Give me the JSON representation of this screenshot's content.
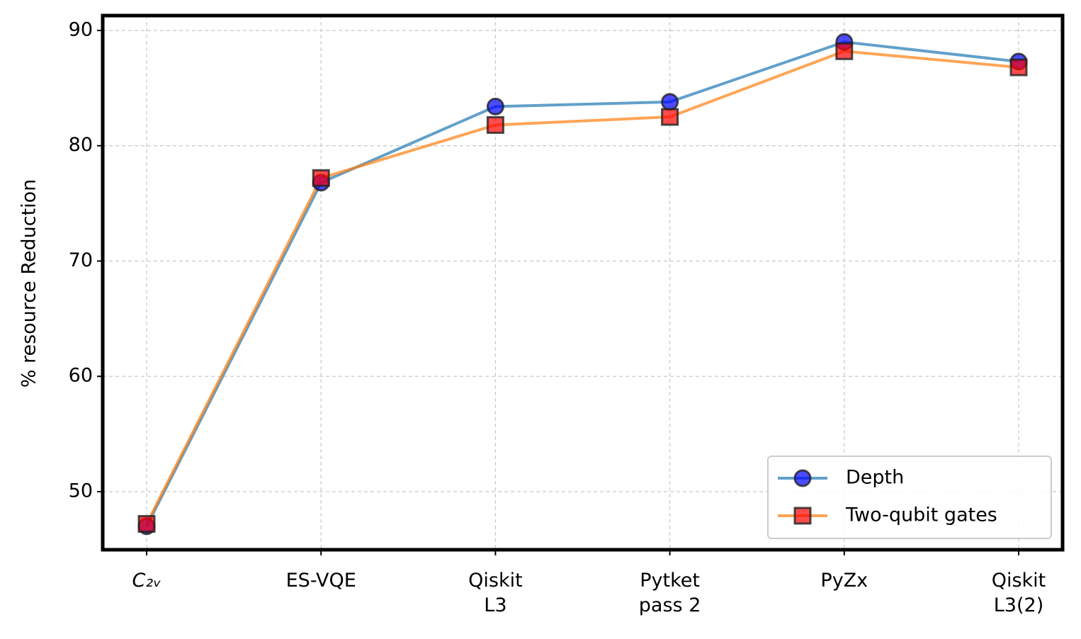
{
  "chart_data": {
    "type": "line",
    "ylabel": "% resource Reduction",
    "categories": [
      "C₂ᵥ",
      "ES-VQE",
      "Qiskit\nL3",
      "Pytket\npass 2",
      "PyZx",
      "Qiskit\nL3(2)"
    ],
    "series": [
      {
        "name": "Depth",
        "color": "#1f77b4",
        "marker": "circle",
        "marker_color": "#0000ff",
        "values": [
          47.0,
          76.8,
          83.4,
          83.8,
          89.0,
          87.3
        ]
      },
      {
        "name": "Two-qubit gates",
        "color": "#ff7f0e",
        "marker": "square",
        "marker_color": "#ff0000",
        "values": [
          47.2,
          77.2,
          81.8,
          82.5,
          88.2,
          86.8
        ]
      }
    ],
    "ylim": [
      44.96,
      91.29
    ],
    "yticks": [
      50,
      60,
      70,
      80,
      90
    ],
    "grid": true,
    "legend": "lower right"
  }
}
